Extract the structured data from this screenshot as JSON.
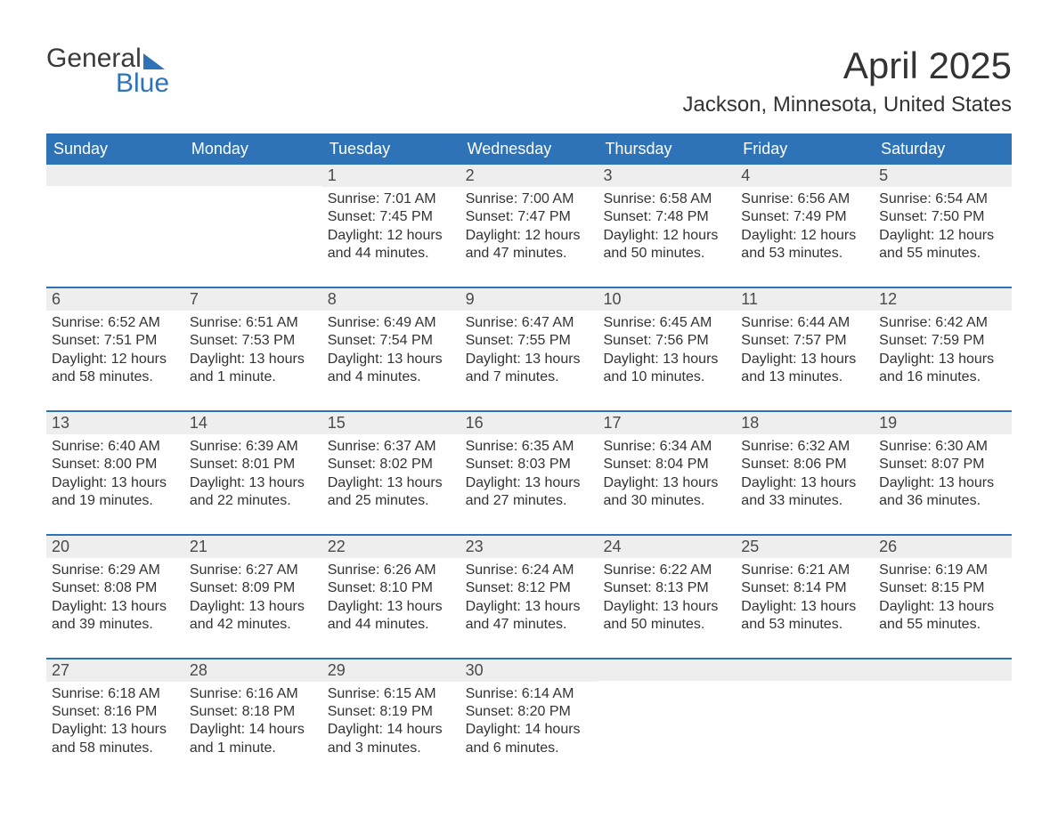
{
  "brand": {
    "line1": "General",
    "line2": "Blue"
  },
  "title": "April 2025",
  "location": "Jackson, Minnesota, United States",
  "colors": {
    "header_bg": "#2e72b8",
    "header_text": "#ffffff",
    "daynum_bg": "#eeeeee",
    "text": "#333333",
    "accent": "#2e72b8",
    "page_bg": "#ffffff"
  },
  "day_names": [
    "Sunday",
    "Monday",
    "Tuesday",
    "Wednesday",
    "Thursday",
    "Friday",
    "Saturday"
  ],
  "labels": {
    "sunrise": "Sunrise:",
    "sunset": "Sunset:",
    "daylight": "Daylight:"
  },
  "weeks": [
    [
      {
        "n": "",
        "sunrise": "",
        "sunset": "",
        "day1": "",
        "day2": ""
      },
      {
        "n": "",
        "sunrise": "",
        "sunset": "",
        "day1": "",
        "day2": ""
      },
      {
        "n": "1",
        "sunrise": "7:01 AM",
        "sunset": "7:45 PM",
        "day1": "12 hours",
        "day2": "and 44 minutes."
      },
      {
        "n": "2",
        "sunrise": "7:00 AM",
        "sunset": "7:47 PM",
        "day1": "12 hours",
        "day2": "and 47 minutes."
      },
      {
        "n": "3",
        "sunrise": "6:58 AM",
        "sunset": "7:48 PM",
        "day1": "12 hours",
        "day2": "and 50 minutes."
      },
      {
        "n": "4",
        "sunrise": "6:56 AM",
        "sunset": "7:49 PM",
        "day1": "12 hours",
        "day2": "and 53 minutes."
      },
      {
        "n": "5",
        "sunrise": "6:54 AM",
        "sunset": "7:50 PM",
        "day1": "12 hours",
        "day2": "and 55 minutes."
      }
    ],
    [
      {
        "n": "6",
        "sunrise": "6:52 AM",
        "sunset": "7:51 PM",
        "day1": "12 hours",
        "day2": "and 58 minutes."
      },
      {
        "n": "7",
        "sunrise": "6:51 AM",
        "sunset": "7:53 PM",
        "day1": "13 hours",
        "day2": "and 1 minute."
      },
      {
        "n": "8",
        "sunrise": "6:49 AM",
        "sunset": "7:54 PM",
        "day1": "13 hours",
        "day2": "and 4 minutes."
      },
      {
        "n": "9",
        "sunrise": "6:47 AM",
        "sunset": "7:55 PM",
        "day1": "13 hours",
        "day2": "and 7 minutes."
      },
      {
        "n": "10",
        "sunrise": "6:45 AM",
        "sunset": "7:56 PM",
        "day1": "13 hours",
        "day2": "and 10 minutes."
      },
      {
        "n": "11",
        "sunrise": "6:44 AM",
        "sunset": "7:57 PM",
        "day1": "13 hours",
        "day2": "and 13 minutes."
      },
      {
        "n": "12",
        "sunrise": "6:42 AM",
        "sunset": "7:59 PM",
        "day1": "13 hours",
        "day2": "and 16 minutes."
      }
    ],
    [
      {
        "n": "13",
        "sunrise": "6:40 AM",
        "sunset": "8:00 PM",
        "day1": "13 hours",
        "day2": "and 19 minutes."
      },
      {
        "n": "14",
        "sunrise": "6:39 AM",
        "sunset": "8:01 PM",
        "day1": "13 hours",
        "day2": "and 22 minutes."
      },
      {
        "n": "15",
        "sunrise": "6:37 AM",
        "sunset": "8:02 PM",
        "day1": "13 hours",
        "day2": "and 25 minutes."
      },
      {
        "n": "16",
        "sunrise": "6:35 AM",
        "sunset": "8:03 PM",
        "day1": "13 hours",
        "day2": "and 27 minutes."
      },
      {
        "n": "17",
        "sunrise": "6:34 AM",
        "sunset": "8:04 PM",
        "day1": "13 hours",
        "day2": "and 30 minutes."
      },
      {
        "n": "18",
        "sunrise": "6:32 AM",
        "sunset": "8:06 PM",
        "day1": "13 hours",
        "day2": "and 33 minutes."
      },
      {
        "n": "19",
        "sunrise": "6:30 AM",
        "sunset": "8:07 PM",
        "day1": "13 hours",
        "day2": "and 36 minutes."
      }
    ],
    [
      {
        "n": "20",
        "sunrise": "6:29 AM",
        "sunset": "8:08 PM",
        "day1": "13 hours",
        "day2": "and 39 minutes."
      },
      {
        "n": "21",
        "sunrise": "6:27 AM",
        "sunset": "8:09 PM",
        "day1": "13 hours",
        "day2": "and 42 minutes."
      },
      {
        "n": "22",
        "sunrise": "6:26 AM",
        "sunset": "8:10 PM",
        "day1": "13 hours",
        "day2": "and 44 minutes."
      },
      {
        "n": "23",
        "sunrise": "6:24 AM",
        "sunset": "8:12 PM",
        "day1": "13 hours",
        "day2": "and 47 minutes."
      },
      {
        "n": "24",
        "sunrise": "6:22 AM",
        "sunset": "8:13 PM",
        "day1": "13 hours",
        "day2": "and 50 minutes."
      },
      {
        "n": "25",
        "sunrise": "6:21 AM",
        "sunset": "8:14 PM",
        "day1": "13 hours",
        "day2": "and 53 minutes."
      },
      {
        "n": "26",
        "sunrise": "6:19 AM",
        "sunset": "8:15 PM",
        "day1": "13 hours",
        "day2": "and 55 minutes."
      }
    ],
    [
      {
        "n": "27",
        "sunrise": "6:18 AM",
        "sunset": "8:16 PM",
        "day1": "13 hours",
        "day2": "and 58 minutes."
      },
      {
        "n": "28",
        "sunrise": "6:16 AM",
        "sunset": "8:18 PM",
        "day1": "14 hours",
        "day2": "and 1 minute."
      },
      {
        "n": "29",
        "sunrise": "6:15 AM",
        "sunset": "8:19 PM",
        "day1": "14 hours",
        "day2": "and 3 minutes."
      },
      {
        "n": "30",
        "sunrise": "6:14 AM",
        "sunset": "8:20 PM",
        "day1": "14 hours",
        "day2": "and 6 minutes."
      },
      {
        "n": "",
        "sunrise": "",
        "sunset": "",
        "day1": "",
        "day2": ""
      },
      {
        "n": "",
        "sunrise": "",
        "sunset": "",
        "day1": "",
        "day2": ""
      },
      {
        "n": "",
        "sunrise": "",
        "sunset": "",
        "day1": "",
        "day2": ""
      }
    ]
  ]
}
